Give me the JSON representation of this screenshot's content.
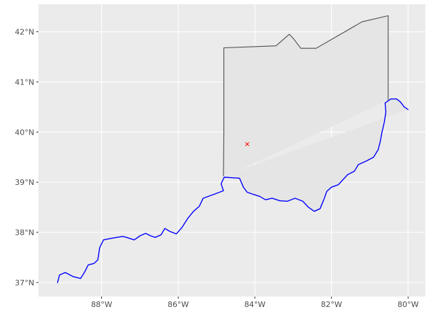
{
  "map": {
    "x_ticks": [
      {
        "lon": -88,
        "label": "88°W"
      },
      {
        "lon": -86,
        "label": "86°W"
      },
      {
        "lon": -84,
        "label": "84°W"
      },
      {
        "lon": -82,
        "label": "82°W"
      },
      {
        "lon": -80,
        "label": "80°W"
      }
    ],
    "y_ticks": [
      {
        "lat": 37,
        "label": "37°N"
      },
      {
        "lat": 38,
        "label": "38°N"
      },
      {
        "lat": 39,
        "label": "39°N"
      },
      {
        "lat": 40,
        "label": "40°N"
      },
      {
        "lat": 41,
        "label": "41°N"
      },
      {
        "lat": 42,
        "label": "42°N"
      }
    ],
    "xlim": [
      -89.65,
      -79.55
    ],
    "ylim": [
      36.72,
      42.55
    ],
    "colors": {
      "panel_background": "#ebebeb",
      "grid": "#ffffff",
      "state_fill": "#e5e5e5",
      "state_outline": "#4d4d4d",
      "river": "#0000ff",
      "marker": "#ff0000"
    },
    "marker": {
      "lon": -84.2,
      "lat": 39.76,
      "shape": "x"
    },
    "state_boundary": [
      [
        -84.82,
        39.12
      ],
      [
        -84.81,
        40.0
      ],
      [
        -84.81,
        41.68
      ],
      [
        -83.45,
        41.72
      ],
      [
        -83.1,
        41.95
      ],
      [
        -83.0,
        41.87
      ],
      [
        -82.8,
        41.67
      ],
      [
        -82.4,
        41.67
      ],
      [
        -81.2,
        42.2
      ],
      [
        -80.52,
        42.32
      ],
      [
        -80.52,
        40.64
      ]
    ],
    "river_path": [
      [
        -80.0,
        40.45
      ],
      [
        -80.1,
        40.5
      ],
      [
        -80.2,
        40.6
      ],
      [
        -80.3,
        40.66
      ],
      [
        -80.45,
        40.66
      ],
      [
        -80.6,
        40.58
      ],
      [
        -80.58,
        40.4
      ],
      [
        -80.62,
        40.2
      ],
      [
        -80.68,
        40.0
      ],
      [
        -80.73,
        39.8
      ],
      [
        -80.78,
        39.65
      ],
      [
        -80.9,
        39.5
      ],
      [
        -81.1,
        39.42
      ],
      [
        -81.3,
        39.35
      ],
      [
        -81.4,
        39.22
      ],
      [
        -81.58,
        39.15
      ],
      [
        -81.7,
        39.05
      ],
      [
        -81.82,
        38.95
      ],
      [
        -82.0,
        38.9
      ],
      [
        -82.12,
        38.82
      ],
      [
        -82.2,
        38.65
      ],
      [
        -82.3,
        38.47
      ],
      [
        -82.45,
        38.42
      ],
      [
        -82.6,
        38.5
      ],
      [
        -82.75,
        38.62
      ],
      [
        -82.95,
        38.68
      ],
      [
        -83.15,
        38.62
      ],
      [
        -83.35,
        38.63
      ],
      [
        -83.55,
        38.68
      ],
      [
        -83.72,
        38.65
      ],
      [
        -83.88,
        38.72
      ],
      [
        -84.05,
        38.76
      ],
      [
        -84.2,
        38.8
      ],
      [
        -84.3,
        38.9
      ],
      [
        -84.4,
        39.08
      ],
      [
        -84.6,
        39.09
      ],
      [
        -84.8,
        39.1
      ],
      [
        -84.88,
        38.97
      ],
      [
        -84.82,
        38.83
      ],
      [
        -85.1,
        38.75
      ],
      [
        -85.35,
        38.68
      ],
      [
        -85.45,
        38.52
      ],
      [
        -85.6,
        38.42
      ],
      [
        -85.75,
        38.28
      ],
      [
        -85.9,
        38.1
      ],
      [
        -86.05,
        37.97
      ],
      [
        -86.22,
        38.02
      ],
      [
        -86.35,
        38.08
      ],
      [
        -86.45,
        37.95
      ],
      [
        -86.6,
        37.9
      ],
      [
        -86.72,
        37.93
      ],
      [
        -86.85,
        37.98
      ],
      [
        -87.0,
        37.93
      ],
      [
        -87.15,
        37.85
      ],
      [
        -87.35,
        37.9
      ],
      [
        -87.45,
        37.92
      ],
      [
        -87.6,
        37.9
      ],
      [
        -87.75,
        37.88
      ],
      [
        -87.95,
        37.85
      ],
      [
        -88.05,
        37.7
      ],
      [
        -88.1,
        37.45
      ],
      [
        -88.2,
        37.38
      ],
      [
        -88.35,
        37.35
      ],
      [
        -88.45,
        37.2
      ],
      [
        -88.55,
        37.08
      ],
      [
        -88.75,
        37.12
      ],
      [
        -88.95,
        37.2
      ],
      [
        -89.1,
        37.15
      ],
      [
        -89.15,
        37.0
      ]
    ]
  }
}
